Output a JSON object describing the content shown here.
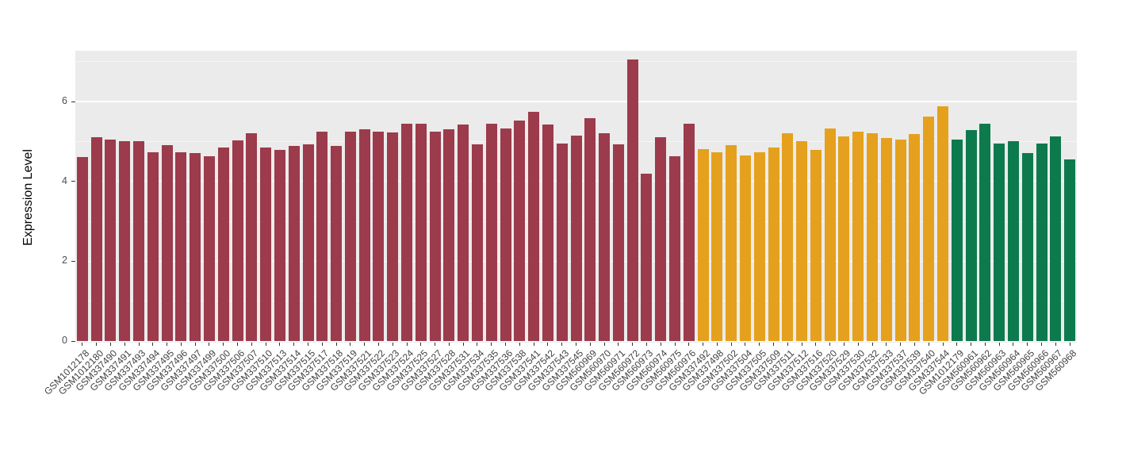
{
  "chart_data": {
    "type": "bar",
    "title": "",
    "xlabel": "",
    "ylabel": "Expression Level",
    "ylim": [
      0,
      7.4
    ],
    "yticks": [
      0,
      2,
      4,
      6
    ],
    "yticks_minor": [
      1,
      3,
      5,
      7
    ],
    "grid": "white major and minor horizontal gridlines on gray panel",
    "legend_position": "none",
    "panel_background": "#ebebeb",
    "outer_background": "#ffffff",
    "groups": [
      {
        "name": "group-maroon",
        "color": "#9c3b4b",
        "samples": [
          "GSM1012178",
          "GSM1012180",
          "GSM337490",
          "GSM337491",
          "GSM337493",
          "GSM337494",
          "GSM337495",
          "GSM337496",
          "GSM337497",
          "GSM337499",
          "GSM337500",
          "GSM337506",
          "GSM337507",
          "GSM337510",
          "GSM337513",
          "GSM337514",
          "GSM337515",
          "GSM337517",
          "GSM337518",
          "GSM337519",
          "GSM337521",
          "GSM337522",
          "GSM337523",
          "GSM337524",
          "GSM337525",
          "GSM337527",
          "GSM337528",
          "GSM337531",
          "GSM337534",
          "GSM337535",
          "GSM337536",
          "GSM337538",
          "GSM337541",
          "GSM337542",
          "GSM337543",
          "GSM337545",
          "GSM560969",
          "GSM560970",
          "GSM560971",
          "GSM560972",
          "GSM560973",
          "GSM560974",
          "GSM560975",
          "GSM560976"
        ],
        "values": [
          4.6,
          5.1,
          5.05,
          5.0,
          5.0,
          4.72,
          4.9,
          4.72,
          4.7,
          4.62,
          4.85,
          5.02,
          5.2,
          4.85,
          4.78,
          4.88,
          4.92,
          5.25,
          4.88,
          5.25,
          5.3,
          5.25,
          5.22,
          5.45,
          5.45,
          5.25,
          5.3,
          5.42,
          4.92,
          5.45,
          5.32,
          5.52,
          5.75,
          5.42,
          4.95,
          5.15,
          5.58,
          5.2,
          4.92,
          7.05,
          4.2,
          5.1,
          4.62,
          5.45
        ]
      },
      {
        "name": "group-orange",
        "color": "#e5a11d",
        "samples": [
          "GSM337492",
          "GSM337498",
          "GSM337502",
          "GSM337504",
          "GSM337505",
          "GSM337509",
          "GSM337511",
          "GSM337512",
          "GSM337516",
          "GSM337520",
          "GSM337529",
          "GSM337530",
          "GSM337532",
          "GSM337533",
          "GSM337537",
          "GSM337539",
          "GSM337540",
          "GSM337544"
        ],
        "values": [
          4.8,
          4.72,
          4.9,
          4.65,
          4.72,
          4.85,
          5.2,
          5.0,
          4.78,
          5.32,
          5.12,
          5.25,
          5.2,
          5.08,
          5.05,
          5.18,
          5.62,
          5.88
        ]
      },
      {
        "name": "group-green",
        "color": "#0d7a4e",
        "samples": [
          "GSM1012179",
          "GSM560961",
          "GSM560962",
          "GSM560963",
          "GSM560964",
          "GSM560965",
          "GSM560966",
          "GSM560967",
          "GSM560968"
        ],
        "values": [
          5.05,
          5.28,
          5.45,
          4.95,
          5.0,
          4.7,
          4.95,
          5.12,
          4.55
        ]
      }
    ]
  }
}
